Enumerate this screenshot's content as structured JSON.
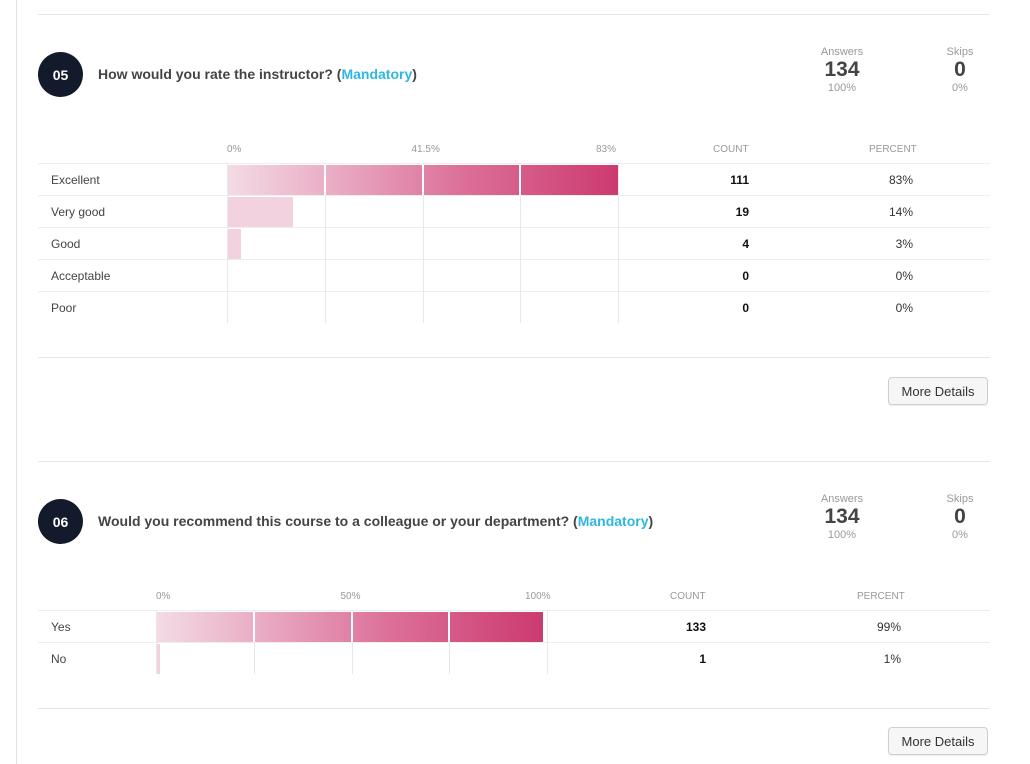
{
  "questions": [
    {
      "number": "05",
      "title_prefix": "How would you rate the instructor? (",
      "mandatory": "Mandatory",
      "title_suffix": ")",
      "answers_label": "Answers",
      "answers": "134",
      "answers_pct": "100%",
      "skips_label": "Skips",
      "skips": "0",
      "skips_pct": "0%",
      "ticks": [
        "0%",
        "41.5%",
        "83%"
      ],
      "count_header": "COUNT",
      "percent_header": "PERCENT",
      "rows": [
        {
          "label": "Excellent",
          "count": "111",
          "percent": "83%",
          "value": 83
        },
        {
          "label": "Very good",
          "count": "19",
          "percent": "14%",
          "value": 14
        },
        {
          "label": "Good",
          "count": "4",
          "percent": "3%",
          "value": 3
        },
        {
          "label": "Acceptable",
          "count": "0",
          "percent": "0%",
          "value": 0
        },
        {
          "label": "Poor",
          "count": "0",
          "percent": "0%",
          "value": 0
        }
      ],
      "axis_max": 83,
      "more_details": "More Details"
    },
    {
      "number": "06",
      "title_prefix": "Would you recommend this course to a colleague or your department? (",
      "mandatory": "Mandatory",
      "title_suffix": ")",
      "answers_label": "Answers",
      "answers": "134",
      "answers_pct": "100%",
      "skips_label": "Skips",
      "skips": "0",
      "skips_pct": "0%",
      "ticks": [
        "0%",
        "50%",
        "100%"
      ],
      "count_header": "COUNT",
      "percent_header": "PERCENT",
      "rows": [
        {
          "label": "Yes",
          "count": "133",
          "percent": "99%",
          "value": 99
        },
        {
          "label": "No",
          "count": "1",
          "percent": "1%",
          "value": 1
        }
      ],
      "axis_max": 100,
      "more_details": "More Details"
    }
  ],
  "colors": {
    "badge": "#131a2b",
    "mandatory": "#2fb7e0",
    "bar_start": "#f3dbe5",
    "bar_end": "#cc3a70"
  }
}
